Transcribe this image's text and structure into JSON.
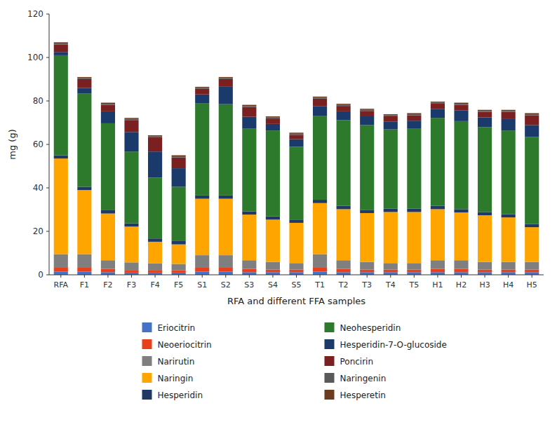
{
  "chart_data": {
    "type": "bar",
    "stacked": true,
    "legend": "bottom",
    "grid": false,
    "xlabel": "RFA and different FFA samples",
    "ylabel": "mg (g)",
    "categories": [
      "RFA",
      "F1",
      "F2",
      "F3",
      "F4",
      "F5",
      "S1",
      "S2",
      "S3",
      "S4",
      "S5",
      "T1",
      "T2",
      "T3",
      "T4",
      "T5",
      "H1",
      "H2",
      "H3",
      "H4",
      "H5"
    ],
    "ylim": [
      0,
      120
    ],
    "yticks": [
      0,
      20,
      40,
      60,
      80,
      100,
      120
    ],
    "series": [
      {
        "name": "Eriocitrin",
        "color": "#4472C4",
        "values": [
          1.5,
          1.5,
          1.2,
          1.0,
          1.0,
          1.0,
          1.5,
          1.5,
          1.2,
          1.2,
          1.2,
          1.5,
          1.2,
          1.2,
          1.2,
          1.2,
          1.2,
          1.2,
          1.2,
          1.2,
          1.2
        ]
      },
      {
        "name": "Neoeriocitrin",
        "color": "#E8401C",
        "values": [
          2.0,
          2.0,
          1.5,
          1.2,
          1.2,
          1.0,
          2.0,
          2.0,
          1.5,
          1.2,
          1.2,
          2.0,
          1.5,
          1.2,
          1.2,
          1.2,
          1.5,
          1.5,
          1.2,
          1.2,
          1.2
        ]
      },
      {
        "name": "Narirutin",
        "color": "#7F7F7F",
        "values": [
          6.0,
          6.0,
          4.0,
          3.5,
          3.0,
          3.0,
          5.5,
          5.5,
          4.0,
          3.5,
          3.0,
          6.0,
          4.0,
          3.5,
          3.0,
          3.0,
          4.0,
          4.0,
          3.5,
          3.5,
          3.5
        ]
      },
      {
        "name": "Naringin",
        "color": "#FFA500",
        "values": [
          44.0,
          29.5,
          21.5,
          16.5,
          10.0,
          9.0,
          26.0,
          26.0,
          21.0,
          19.5,
          18.5,
          23.5,
          23.5,
          22.5,
          23.5,
          23.5,
          23.5,
          22.0,
          21.5,
          20.5,
          16.0
        ]
      },
      {
        "name": "Hesperidin",
        "color": "#1F3864",
        "values": [
          1.5,
          1.5,
          1.5,
          1.5,
          1.5,
          1.5,
          1.5,
          1.5,
          1.5,
          1.5,
          1.5,
          1.5,
          1.5,
          1.5,
          1.5,
          1.5,
          1.5,
          1.5,
          1.5,
          1.5,
          1.5
        ]
      },
      {
        "name": "Neohesperidin",
        "color": "#2D7A2D",
        "values": [
          46.0,
          43.0,
          40.0,
          33.0,
          28.0,
          25.0,
          42.5,
          42.0,
          38.0,
          39.5,
          33.5,
          38.5,
          39.5,
          39.0,
          36.5,
          37.0,
          40.5,
          40.5,
          39.0,
          38.5,
          40.0
        ]
      },
      {
        "name": "Hesperidin-7-O-glucoside",
        "color": "#1A3A6B",
        "values": [
          1.5,
          2.5,
          5.5,
          9.0,
          12.0,
          8.5,
          4.0,
          8.0,
          5.5,
          3.0,
          3.5,
          4.5,
          4.0,
          4.0,
          3.5,
          3.5,
          4.0,
          5.0,
          4.5,
          5.5,
          5.5
        ]
      },
      {
        "name": "Poncirin",
        "color": "#7B2020",
        "values": [
          3.5,
          4.0,
          3.0,
          5.5,
          6.5,
          5.0,
          2.5,
          3.5,
          4.5,
          2.5,
          2.0,
          3.5,
          2.5,
          2.5,
          2.5,
          2.5,
          2.5,
          2.5,
          2.5,
          3.0,
          4.5
        ]
      },
      {
        "name": "Naringenin",
        "color": "#595959",
        "values": [
          0.5,
          0.5,
          0.5,
          0.5,
          0.5,
          0.5,
          0.5,
          0.5,
          0.5,
          0.5,
          0.5,
          0.5,
          0.5,
          0.5,
          0.5,
          0.5,
          0.5,
          0.5,
          0.5,
          0.5,
          0.5
        ]
      },
      {
        "name": "Hesperetin",
        "color": "#6B3A1F",
        "values": [
          0.5,
          0.5,
          0.5,
          0.5,
          0.5,
          0.5,
          0.5,
          0.5,
          0.5,
          0.5,
          0.5,
          0.5,
          0.5,
          0.5,
          0.5,
          0.5,
          0.5,
          0.5,
          0.5,
          0.5,
          0.5
        ]
      }
    ]
  }
}
